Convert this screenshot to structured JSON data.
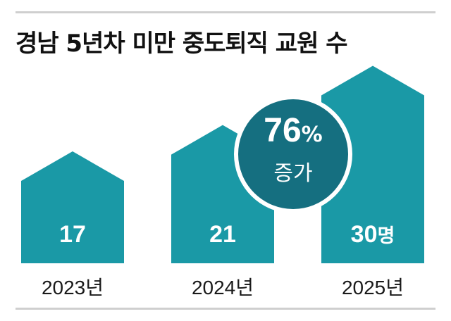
{
  "chart_data": {
    "type": "bar",
    "title": "경남 5년차 미만 중도퇴직 교원 수",
    "categories": [
      "2023년",
      "2024년",
      "2025년"
    ],
    "values": [
      17,
      21,
      30
    ],
    "unit": "명",
    "annotation": {
      "value": "76",
      "sign": "%",
      "label": "증가"
    },
    "colors": {
      "bar": "#1a99a6",
      "badge": "#156f80",
      "badge_ring": "#ffffff"
    }
  }
}
